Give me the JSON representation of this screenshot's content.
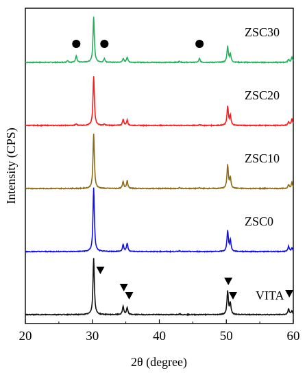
{
  "chart_data": {
    "type": "line",
    "xlabel": "2θ (degree)",
    "ylabel": "Intensity (CPS)",
    "xlim": [
      20,
      60
    ],
    "x_ticks": [
      "20",
      "30",
      "40",
      "50",
      "60"
    ],
    "y_ticks_shown": false,
    "grid": false,
    "legend": "none; series labels printed beside each curve",
    "series": [
      {
        "name": "ZSC30",
        "color": "#22b05a",
        "baseline_offset": 4,
        "peaks": [
          [
            26.3,
            0.05
          ],
          [
            27.6,
            0.18
          ],
          [
            30.2,
            1.2
          ],
          [
            31.8,
            0.1
          ],
          [
            34.6,
            0.1
          ],
          [
            35.2,
            0.14
          ],
          [
            43.0,
            0.03
          ],
          [
            46.0,
            0.1
          ],
          [
            50.2,
            0.42
          ],
          [
            50.6,
            0.22
          ],
          [
            59.3,
            0.08
          ],
          [
            59.8,
            0.14
          ]
        ],
        "markers": [
          {
            "shape": "circle",
            "x": 27.6
          },
          {
            "shape": "circle",
            "x": 31.8
          },
          {
            "shape": "circle",
            "x": 46.0
          }
        ]
      },
      {
        "name": "ZSC20",
        "color": "#ff1a1a",
        "baseline_offset": 3,
        "peaks": [
          [
            27.6,
            0.04
          ],
          [
            30.2,
            1.3
          ],
          [
            31.8,
            0.03
          ],
          [
            34.6,
            0.16
          ],
          [
            35.2,
            0.14
          ],
          [
            46.0,
            0.03
          ],
          [
            50.2,
            0.5
          ],
          [
            50.6,
            0.25
          ],
          [
            59.3,
            0.1
          ],
          [
            59.8,
            0.18
          ]
        ],
        "markers": []
      },
      {
        "name": "ZSC10",
        "color": "#8c6a13",
        "baseline_offset": 2,
        "peaks": [
          [
            30.2,
            1.45
          ],
          [
            34.6,
            0.18
          ],
          [
            35.2,
            0.2
          ],
          [
            43.0,
            0.02
          ],
          [
            46.0,
            0.02
          ],
          [
            50.2,
            0.62
          ],
          [
            50.6,
            0.28
          ],
          [
            59.3,
            0.1
          ],
          [
            59.8,
            0.16
          ]
        ],
        "markers": []
      },
      {
        "name": "ZSC0",
        "color": "#1010ee",
        "baseline_offset": 1,
        "peaks": [
          [
            30.2,
            1.7
          ],
          [
            34.6,
            0.18
          ],
          [
            35.2,
            0.22
          ],
          [
            43.0,
            0.02
          ],
          [
            50.2,
            0.55
          ],
          [
            50.6,
            0.3
          ],
          [
            59.3,
            0.14
          ],
          [
            59.8,
            0.1
          ]
        ],
        "markers": []
      },
      {
        "name": "VITA",
        "color": "#111111",
        "baseline_offset": 0,
        "peaks": [
          [
            30.2,
            1.5
          ],
          [
            34.6,
            0.22
          ],
          [
            35.2,
            0.18
          ],
          [
            43.0,
            0.02
          ],
          [
            50.2,
            0.62
          ],
          [
            50.6,
            0.3
          ],
          [
            59.3,
            0.16
          ],
          [
            59.8,
            0.1
          ]
        ],
        "markers": [
          {
            "shape": "triangle-down",
            "x": 31.2
          },
          {
            "shape": "triangle-down",
            "x": 34.7
          },
          {
            "shape": "triangle-down",
            "x": 35.5
          },
          {
            "shape": "triangle-down",
            "x": 50.3
          },
          {
            "shape": "triangle-down",
            "x": 51.0
          },
          {
            "shape": "triangle-down",
            "x": 59.4
          }
        ]
      }
    ]
  }
}
